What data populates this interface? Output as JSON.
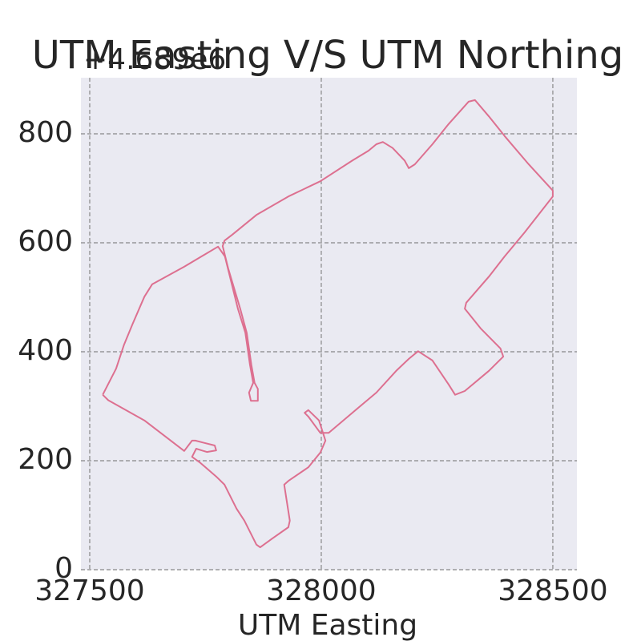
{
  "chart_data": {
    "type": "line",
    "title": "UTM Easting V/S UTM Northing",
    "x_label": "UTM Easting",
    "y_offset_label": "+4.689e6",
    "color": "#dd7090",
    "grid": true,
    "xlim": [
      327481,
      328552
    ],
    "ylim": [
      0,
      903
    ],
    "xticks": [
      327500,
      328000,
      328500
    ],
    "yticks": [
      0,
      200,
      400,
      600,
      800
    ],
    "x": [
      327528,
      327540,
      327618,
      327704,
      327721,
      327728,
      327770,
      327773,
      327753,
      327730,
      327721,
      327739,
      327773,
      327791,
      327817,
      327834,
      327860,
      327868,
      327894,
      327929,
      327932,
      327920,
      327929,
      327972,
      327998,
      328009,
      327995,
      327972,
      327964,
      327972,
      327998,
      328016,
      328067,
      328119,
      328163,
      328189,
      328209,
      328240,
      328275,
      328289,
      328310,
      328362,
      328393,
      328387,
      328344,
      328310,
      328313,
      328362,
      328396,
      328439,
      328500,
      328500,
      328448,
      328396,
      328362,
      328332,
      328318,
      328275,
      328240,
      328202,
      328189,
      328180,
      328154,
      328133,
      328119,
      328102,
      328067,
      327998,
      327929,
      327860,
      327808,
      327791,
      327787,
      327799,
      327825,
      327839,
      327849,
      327856,
      327863,
      327863,
      327848,
      327844,
      327853,
      327846,
      327836,
      327820,
      327792,
      327777,
      327704,
      327635,
      327618,
      327592,
      327574,
      327557,
      327528
    ],
    "values": [
      321,
      311,
      274,
      218,
      237,
      237,
      228,
      219,
      216,
      222,
      207,
      196,
      171,
      156,
      112,
      90,
      46,
      41,
      57,
      78,
      90,
      156,
      163,
      188,
      215,
      237,
      274,
      293,
      288,
      281,
      251,
      251,
      288,
      325,
      366,
      387,
      401,
      384,
      340,
      321,
      328,
      365,
      391,
      406,
      443,
      479,
      490,
      538,
      575,
      619,
      685,
      696,
      744,
      796,
      832,
      862,
      859,
      818,
      781,
      744,
      737,
      751,
      774,
      785,
      781,
      769,
      751,
      713,
      685,
      651,
      615,
      604,
      594,
      553,
      479,
      435,
      376,
      343,
      332,
      310,
      310,
      325,
      343,
      376,
      435,
      479,
      575,
      593,
      556,
      524,
      501,
      450,
      413,
      369,
      321
    ]
  }
}
